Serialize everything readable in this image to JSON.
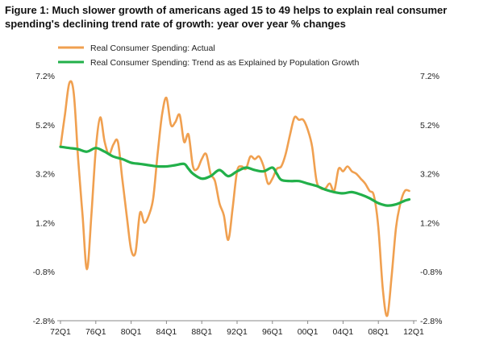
{
  "chart_data": {
    "type": "line",
    "title": "Figure 1: Much slower growth of americans aged 15 to 49 helps to explain real consumer spending's declining trend rate of growth: year over year % changes",
    "xlabel": "",
    "ylabel": "",
    "x_tick_labels": [
      "72Q1",
      "76Q1",
      "80Q1",
      "84Q1",
      "88Q1",
      "92Q1",
      "96Q1",
      "00Q1",
      "04Q1",
      "08Q1",
      "12Q1"
    ],
    "y_tick_labels": [
      "7.2%",
      "5.2%",
      "3.2%",
      "1.2%",
      "-0.8%",
      "-2.8%"
    ],
    "y_ticks": [
      7.2,
      5.2,
      3.2,
      1.2,
      -0.8,
      -2.8
    ],
    "ylim": [
      -2.8,
      7.2
    ],
    "xlim": [
      1972.0,
      2012.0
    ],
    "grid": false,
    "legend_position": "top-left",
    "series": [
      {
        "name": "Real Consumer Spending: Actual",
        "color": "#f0a050",
        "points": [
          [
            1972.0,
            4.3
          ],
          [
            1972.5,
            5.6
          ],
          [
            1973.0,
            6.9
          ],
          [
            1973.5,
            6.5
          ],
          [
            1974.0,
            3.8
          ],
          [
            1974.5,
            1.5
          ],
          [
            1975.0,
            -0.7
          ],
          [
            1975.5,
            1.5
          ],
          [
            1976.0,
            4.2
          ],
          [
            1976.5,
            5.5
          ],
          [
            1977.0,
            4.5
          ],
          [
            1977.5,
            4.0
          ],
          [
            1978.0,
            4.4
          ],
          [
            1978.5,
            4.5
          ],
          [
            1979.0,
            3.0
          ],
          [
            1979.5,
            1.5
          ],
          [
            1980.0,
            0.1
          ],
          [
            1980.5,
            0.0
          ],
          [
            1981.0,
            1.6
          ],
          [
            1981.5,
            1.2
          ],
          [
            1982.0,
            1.5
          ],
          [
            1982.5,
            2.2
          ],
          [
            1983.0,
            4.0
          ],
          [
            1983.5,
            5.6
          ],
          [
            1984.0,
            6.3
          ],
          [
            1984.5,
            5.2
          ],
          [
            1985.0,
            5.3
          ],
          [
            1985.5,
            5.6
          ],
          [
            1986.0,
            4.5
          ],
          [
            1986.5,
            4.8
          ],
          [
            1987.0,
            3.5
          ],
          [
            1987.5,
            3.4
          ],
          [
            1988.0,
            3.8
          ],
          [
            1988.5,
            4.0
          ],
          [
            1989.0,
            3.2
          ],
          [
            1989.5,
            2.9
          ],
          [
            1990.0,
            2.0
          ],
          [
            1990.5,
            1.5
          ],
          [
            1991.0,
            0.5
          ],
          [
            1991.5,
            1.8
          ],
          [
            1992.0,
            3.3
          ],
          [
            1992.5,
            3.5
          ],
          [
            1993.0,
            3.4
          ],
          [
            1993.5,
            3.9
          ],
          [
            1994.0,
            3.8
          ],
          [
            1994.5,
            3.9
          ],
          [
            1995.0,
            3.5
          ],
          [
            1995.5,
            2.8
          ],
          [
            1996.0,
            3.0
          ],
          [
            1996.5,
            3.4
          ],
          [
            1997.0,
            3.5
          ],
          [
            1997.5,
            4.0
          ],
          [
            1998.0,
            4.8
          ],
          [
            1998.5,
            5.5
          ],
          [
            1999.0,
            5.4
          ],
          [
            1999.5,
            5.4
          ],
          [
            2000.0,
            5.0
          ],
          [
            2000.5,
            4.3
          ],
          [
            2001.0,
            2.9
          ],
          [
            2001.5,
            2.6
          ],
          [
            2002.0,
            2.6
          ],
          [
            2002.5,
            2.8
          ],
          [
            2003.0,
            2.5
          ],
          [
            2003.5,
            3.4
          ],
          [
            2004.0,
            3.3
          ],
          [
            2004.5,
            3.5
          ],
          [
            2005.0,
            3.3
          ],
          [
            2005.5,
            3.2
          ],
          [
            2006.0,
            3.0
          ],
          [
            2006.5,
            2.8
          ],
          [
            2007.0,
            2.5
          ],
          [
            2007.5,
            2.3
          ],
          [
            2008.0,
            1.0
          ],
          [
            2008.5,
            -1.5
          ],
          [
            2009.0,
            -2.6
          ],
          [
            2009.5,
            -1.0
          ],
          [
            2010.0,
            1.0
          ],
          [
            2010.5,
            2.0
          ],
          [
            2011.0,
            2.5
          ],
          [
            2011.5,
            2.5
          ]
        ]
      },
      {
        "name": "Real Consumer Spending: Trend as as Explained by Population Growth",
        "color": "#22b04a",
        "points": [
          [
            1972.0,
            4.3
          ],
          [
            1973.0,
            4.25
          ],
          [
            1974.0,
            4.2
          ],
          [
            1975.0,
            4.1
          ],
          [
            1976.0,
            4.25
          ],
          [
            1977.0,
            4.1
          ],
          [
            1978.0,
            3.9
          ],
          [
            1979.0,
            3.8
          ],
          [
            1980.0,
            3.65
          ],
          [
            1981.0,
            3.6
          ],
          [
            1982.0,
            3.55
          ],
          [
            1983.0,
            3.5
          ],
          [
            1984.0,
            3.5
          ],
          [
            1985.0,
            3.55
          ],
          [
            1986.0,
            3.6
          ],
          [
            1986.5,
            3.4
          ],
          [
            1987.0,
            3.2
          ],
          [
            1988.0,
            3.0
          ],
          [
            1989.0,
            3.1
          ],
          [
            1990.0,
            3.35
          ],
          [
            1991.0,
            3.1
          ],
          [
            1992.0,
            3.3
          ],
          [
            1993.0,
            3.45
          ],
          [
            1994.0,
            3.35
          ],
          [
            1995.0,
            3.3
          ],
          [
            1996.0,
            3.45
          ],
          [
            1996.5,
            3.2
          ],
          [
            1997.0,
            2.95
          ],
          [
            1998.0,
            2.9
          ],
          [
            1999.0,
            2.9
          ],
          [
            2000.0,
            2.8
          ],
          [
            2001.0,
            2.7
          ],
          [
            2002.0,
            2.55
          ],
          [
            2003.0,
            2.45
          ],
          [
            2004.0,
            2.4
          ],
          [
            2005.0,
            2.45
          ],
          [
            2006.0,
            2.35
          ],
          [
            2007.0,
            2.2
          ],
          [
            2008.0,
            2.0
          ],
          [
            2009.0,
            1.9
          ],
          [
            2010.0,
            1.95
          ],
          [
            2011.0,
            2.1
          ],
          [
            2011.5,
            2.15
          ]
        ]
      }
    ]
  }
}
